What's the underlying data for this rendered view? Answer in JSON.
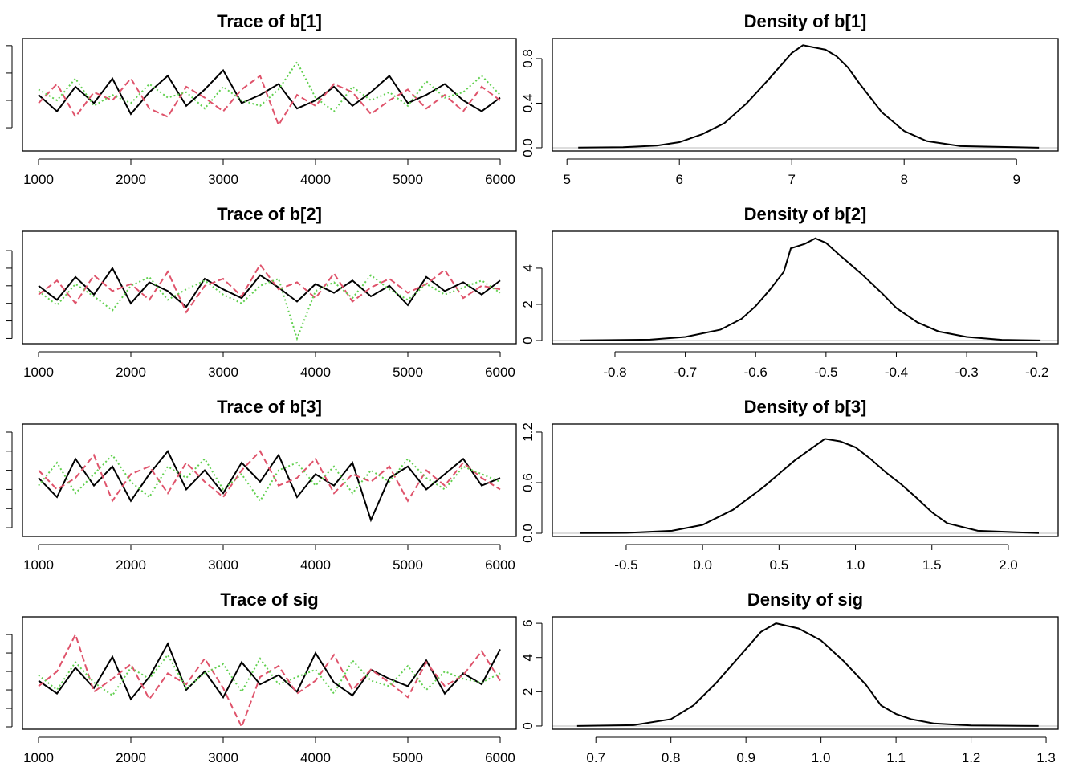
{
  "chart_data": [
    {
      "type": "line",
      "title": "Trace of b[1]",
      "xlim": [
        826,
        6174
      ],
      "xticks": [
        1000,
        2000,
        3000,
        4000,
        5000,
        6000
      ],
      "ylim": [
        5.15,
        9.26
      ],
      "yticks": [
        6,
        7,
        8,
        9
      ],
      "ytick_labels": false,
      "x": [
        1000,
        1200,
        1400,
        1600,
        1800,
        2000,
        2200,
        2400,
        2600,
        2800,
        3000,
        3200,
        3400,
        3600,
        3800,
        4000,
        4200,
        4400,
        4600,
        4800,
        5000,
        5200,
        5400,
        5600,
        5800,
        6000
      ],
      "series": [
        {
          "color": "#000000",
          "values": [
            7.2,
            6.6,
            7.5,
            6.9,
            7.8,
            6.5,
            7.3,
            7.9,
            6.8,
            7.4,
            8.1,
            6.9,
            7.2,
            7.6,
            6.7,
            7.0,
            7.5,
            6.8,
            7.3,
            7.9,
            6.9,
            7.2,
            7.6,
            7.0,
            6.6,
            7.1
          ]
        },
        {
          "color": "#DF536B",
          "values": [
            6.9,
            7.6,
            6.4,
            7.3,
            7.0,
            7.8,
            6.7,
            6.4,
            7.5,
            7.1,
            6.6,
            7.4,
            7.9,
            6.1,
            7.2,
            6.8,
            7.6,
            7.3,
            6.5,
            7.0,
            7.4,
            6.7,
            7.2,
            6.6,
            7.5,
            7.0
          ]
        },
        {
          "color": "#61D04F",
          "values": [
            7.4,
            7.0,
            7.8,
            6.8,
            7.2,
            6.9,
            7.6,
            7.1,
            7.3,
            6.7,
            7.5,
            7.0,
            6.8,
            7.4,
            8.4,
            7.1,
            6.6,
            7.5,
            7.0,
            7.3,
            6.8,
            7.7,
            7.1,
            7.3,
            7.9,
            7.2
          ]
        }
      ]
    },
    {
      "type": "density",
      "title": "Density of b[1]",
      "xlim": [
        4.87,
        9.37
      ],
      "xticks": [
        5,
        6,
        7,
        8,
        9
      ],
      "ylim": [
        -0.029,
        0.98
      ],
      "yticks": [
        {
          "value": 0,
          "label": "0.0"
        },
        0.4,
        0.8
      ],
      "color": "#000000",
      "x": [
        5.1,
        5.5,
        5.8,
        6.0,
        6.2,
        6.4,
        6.6,
        6.8,
        7.0,
        7.1,
        7.2,
        7.3,
        7.4,
        7.5,
        7.6,
        7.8,
        8.0,
        8.2,
        8.5,
        9.2
      ],
      "values": [
        0.002,
        0.005,
        0.02,
        0.05,
        0.12,
        0.22,
        0.4,
        0.62,
        0.85,
        0.92,
        0.9,
        0.88,
        0.82,
        0.72,
        0.58,
        0.32,
        0.15,
        0.06,
        0.015,
        0.001
      ]
    },
    {
      "type": "line",
      "title": "Trace of b[2]",
      "xlim": [
        826,
        6174
      ],
      "xticks": [
        1000,
        2000,
        3000,
        4000,
        5000,
        6000
      ],
      "ylim": [
        -0.83,
        -0.19
      ],
      "yticks": [
        -0.8,
        -0.7,
        -0.6,
        -0.5,
        -0.4,
        -0.3
      ],
      "ytick_labels": false,
      "x": [
        1000,
        1200,
        1400,
        1600,
        1800,
        2000,
        2200,
        2400,
        2600,
        2800,
        3000,
        3200,
        3400,
        3600,
        3800,
        4000,
        4200,
        4400,
        4600,
        4800,
        5000,
        5200,
        5400,
        5600,
        5800,
        6000
      ],
      "series": [
        {
          "color": "#000000",
          "values": [
            -0.5,
            -0.58,
            -0.45,
            -0.55,
            -0.4,
            -0.6,
            -0.48,
            -0.53,
            -0.62,
            -0.46,
            -0.52,
            -0.57,
            -0.44,
            -0.51,
            -0.59,
            -0.49,
            -0.54,
            -0.47,
            -0.56,
            -0.5,
            -0.61,
            -0.45,
            -0.53,
            -0.48,
            -0.55,
            -0.47
          ]
        },
        {
          "color": "#DF536B",
          "values": [
            -0.55,
            -0.47,
            -0.6,
            -0.44,
            -0.53,
            -0.49,
            -0.58,
            -0.42,
            -0.65,
            -0.5,
            -0.46,
            -0.56,
            -0.38,
            -0.52,
            -0.48,
            -0.57,
            -0.43,
            -0.59,
            -0.51,
            -0.46,
            -0.54,
            -0.49,
            -0.41,
            -0.57,
            -0.5,
            -0.52
          ]
        },
        {
          "color": "#61D04F",
          "values": [
            -0.53,
            -0.61,
            -0.49,
            -0.56,
            -0.64,
            -0.5,
            -0.45,
            -0.58,
            -0.52,
            -0.47,
            -0.55,
            -0.6,
            -0.5,
            -0.46,
            -0.8,
            -0.53,
            -0.48,
            -0.57,
            -0.44,
            -0.52,
            -0.58,
            -0.49,
            -0.55,
            -0.51,
            -0.47,
            -0.54
          ]
        }
      ]
    },
    {
      "type": "density",
      "title": "Density of b[2]",
      "xlim": [
        -0.889,
        -0.17
      ],
      "xticks": [
        -0.8,
        -0.7,
        -0.6,
        -0.5,
        -0.4,
        -0.3,
        -0.2
      ],
      "ylim": [
        -0.178,
        6.04
      ],
      "yticks": [
        0,
        2,
        4
      ],
      "color": "#000000",
      "x": [
        -0.85,
        -0.75,
        -0.7,
        -0.65,
        -0.62,
        -0.6,
        -0.58,
        -0.56,
        -0.55,
        -0.53,
        -0.515,
        -0.5,
        -0.48,
        -0.45,
        -0.42,
        -0.4,
        -0.37,
        -0.34,
        -0.3,
        -0.25,
        -0.195
      ],
      "values": [
        0.01,
        0.05,
        0.2,
        0.6,
        1.2,
        1.9,
        2.8,
        3.8,
        5.1,
        5.35,
        5.65,
        5.4,
        4.7,
        3.7,
        2.6,
        1.8,
        1.0,
        0.5,
        0.2,
        0.04,
        0.005
      ]
    },
    {
      "type": "line",
      "title": "Trace of b[3]",
      "xlim": [
        826,
        6174
      ],
      "xticks": [
        1000,
        2000,
        3000,
        4000,
        5000,
        6000
      ],
      "ylim": [
        -0.73,
        2.21
      ],
      "yticks": [
        -0.5,
        0,
        0.5,
        1,
        1.5,
        2
      ],
      "ytick_labels": false,
      "x": [
        1000,
        1200,
        1400,
        1600,
        1800,
        2000,
        2200,
        2400,
        2600,
        2800,
        3000,
        3200,
        3400,
        3600,
        3800,
        4000,
        4200,
        4400,
        4600,
        4800,
        5000,
        5200,
        5400,
        5600,
        5800,
        6000
      ],
      "series": [
        {
          "color": "#000000",
          "values": [
            0.8,
            0.3,
            1.3,
            0.6,
            1.1,
            0.2,
            0.9,
            1.5,
            0.5,
            1.0,
            0.4,
            1.2,
            0.7,
            1.4,
            0.3,
            0.9,
            0.6,
            1.2,
            -0.3,
            0.8,
            1.1,
            0.5,
            0.9,
            1.3,
            0.6,
            0.8
          ]
        },
        {
          "color": "#DF536B",
          "values": [
            1.0,
            0.5,
            0.8,
            1.4,
            0.2,
            0.9,
            1.1,
            0.4,
            1.2,
            0.7,
            0.3,
            1.0,
            1.5,
            0.6,
            0.8,
            1.3,
            0.4,
            0.9,
            0.7,
            1.1,
            0.2,
            1.0,
            0.6,
            1.2,
            0.8,
            0.5
          ]
        },
        {
          "color": "#61D04F",
          "values": [
            0.6,
            1.2,
            0.4,
            0.9,
            1.4,
            0.7,
            0.3,
            1.1,
            0.8,
            1.3,
            0.5,
            0.9,
            0.2,
            1.0,
            1.2,
            0.6,
            1.1,
            0.4,
            1.0,
            0.7,
            1.3,
            0.8,
            0.5,
            1.1,
            0.9,
            0.7
          ]
        }
      ]
    },
    {
      "type": "density",
      "title": "Density of b[3]",
      "xlim": [
        -0.983,
        2.326
      ],
      "xticks": [
        -0.5,
        {
          "value": 0,
          "label": "0.0"
        },
        0.5,
        {
          "value": 1,
          "label": "1.0"
        },
        1.5,
        {
          "value": 2,
          "label": "2.0"
        }
      ],
      "ylim": [
        -0.038,
        1.295
      ],
      "yticks": [
        {
          "value": 0,
          "label": "0.0"
        },
        0.6,
        1.2
      ],
      "color": "#000000",
      "x": [
        -0.8,
        -0.5,
        -0.2,
        0,
        0.2,
        0.4,
        0.6,
        0.8,
        0.9,
        1.0,
        1.1,
        1.2,
        1.3,
        1.4,
        1.5,
        1.6,
        1.8,
        2.2
      ],
      "values": [
        0.002,
        0.005,
        0.03,
        0.1,
        0.28,
        0.55,
        0.86,
        1.12,
        1.09,
        1.02,
        0.88,
        0.72,
        0.58,
        0.42,
        0.25,
        0.12,
        0.03,
        0.002
      ]
    },
    {
      "type": "line",
      "title": "Trace of sig",
      "xlim": [
        826,
        6174
      ],
      "xticks": [
        1000,
        2000,
        3000,
        4000,
        5000,
        6000
      ],
      "ylim": [
        0.687,
        1.296
      ],
      "yticks": [
        0.7,
        0.8,
        0.9,
        1,
        1.1,
        1.2
      ],
      "ytick_labels": false,
      "x": [
        1000,
        1200,
        1400,
        1600,
        1800,
        2000,
        2200,
        2400,
        2600,
        2800,
        3000,
        3200,
        3400,
        3600,
        3800,
        4000,
        4200,
        4400,
        4600,
        4800,
        5000,
        5200,
        5400,
        5600,
        5800,
        6000
      ],
      "series": [
        {
          "color": "#000000",
          "values": [
            0.95,
            0.88,
            1.02,
            0.91,
            1.08,
            0.85,
            0.97,
            1.15,
            0.9,
            1.0,
            0.86,
            1.05,
            0.93,
            0.98,
            0.89,
            1.1,
            0.94,
            0.87,
            1.01,
            0.96,
            0.92,
            1.06,
            0.88,
            0.99,
            0.93,
            1.12
          ]
        },
        {
          "color": "#DF536B",
          "values": [
            0.92,
            1.0,
            1.2,
            0.89,
            0.96,
            1.04,
            0.85,
            0.99,
            0.93,
            1.07,
            0.91,
            0.7,
            0.97,
            1.03,
            0.88,
            0.95,
            1.09,
            0.9,
            1.01,
            0.94,
            0.86,
            1.05,
            0.92,
            0.98,
            1.11,
            0.95
          ]
        },
        {
          "color": "#61D04F",
          "values": [
            0.98,
            0.9,
            1.05,
            0.94,
            0.87,
            1.02,
            0.96,
            1.09,
            0.91,
            0.99,
            1.04,
            0.89,
            1.07,
            0.93,
            0.97,
            1.01,
            0.88,
            1.06,
            0.95,
            0.92,
            1.03,
            0.9,
            1.0,
            0.96,
            0.94,
            0.99
          ]
        }
      ]
    },
    {
      "type": "density",
      "title": "Density of sig",
      "xlim": [
        0.642,
        1.316
      ],
      "xticks": [
        0.7,
        0.8,
        0.9,
        {
          "value": 1,
          "label": "1.0"
        },
        1.1,
        1.2,
        1.3
      ],
      "ylim": [
        -0.19,
        6.38
      ],
      "yticks": [
        0,
        2,
        4,
        6
      ],
      "color": "#000000",
      "x": [
        0.675,
        0.75,
        0.8,
        0.83,
        0.86,
        0.89,
        0.92,
        0.94,
        0.97,
        1.0,
        1.03,
        1.06,
        1.08,
        1.1,
        1.12,
        1.15,
        1.2,
        1.29
      ],
      "values": [
        0.005,
        0.05,
        0.4,
        1.2,
        2.5,
        4.0,
        5.5,
        6.0,
        5.7,
        5.0,
        3.8,
        2.4,
        1.2,
        0.7,
        0.4,
        0.15,
        0.03,
        0.002
      ]
    }
  ]
}
